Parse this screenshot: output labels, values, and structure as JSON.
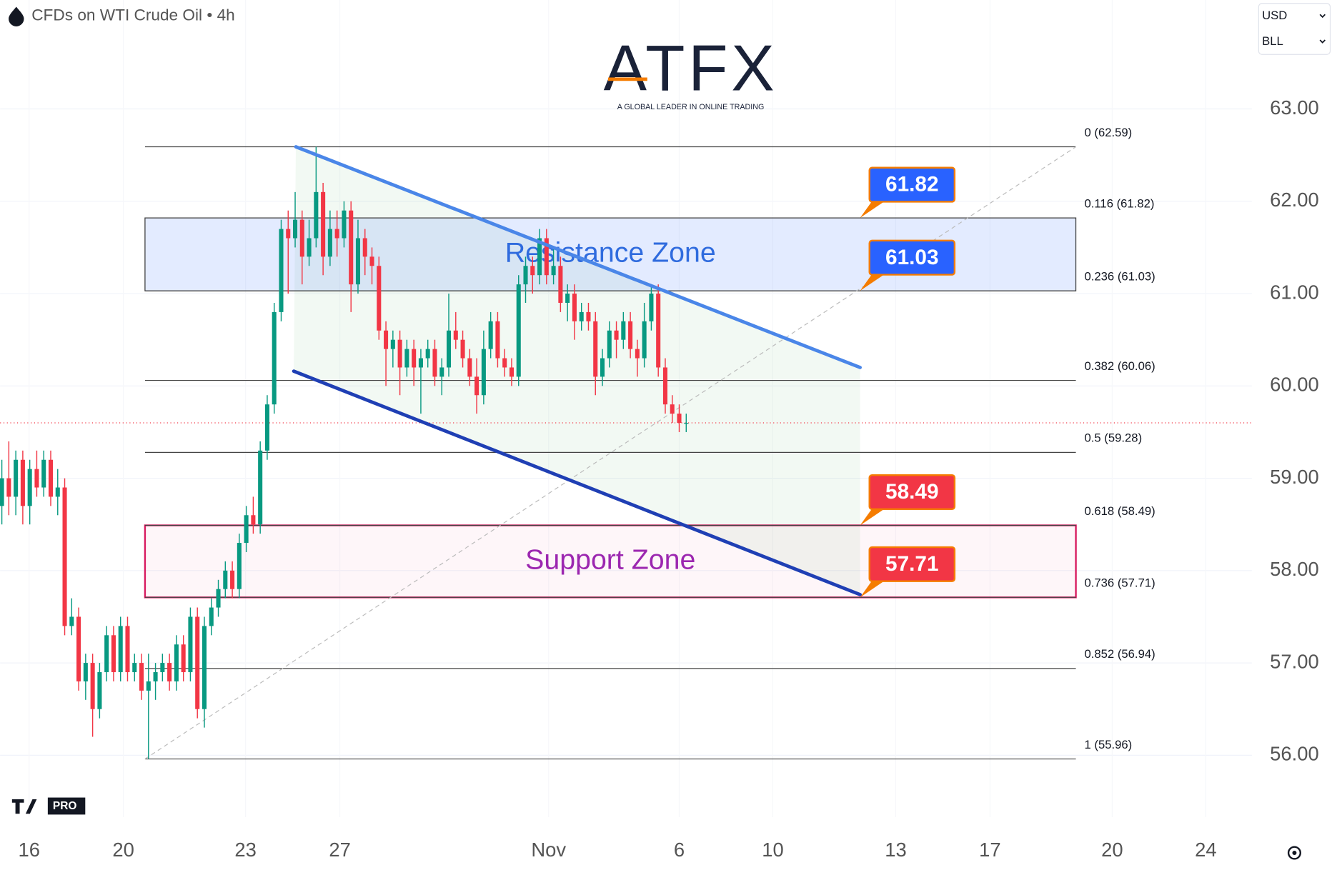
{
  "header": {
    "title": "CFDs on WTI Crude Oil • 4h",
    "currency": "USD",
    "unit": "BLL"
  },
  "logo": {
    "name": "ATFX",
    "tagline": "A GLOBAL LEADER IN ONLINE TRADING"
  },
  "badge": "PRO",
  "chart_data": {
    "type": "candlestick",
    "up_color": "#089981",
    "down_color": "#f23645",
    "candles": [
      [
        58.7,
        59.2,
        58.5,
        59.0
      ],
      [
        59.0,
        59.4,
        58.6,
        58.8
      ],
      [
        58.8,
        59.3,
        58.6,
        59.2
      ],
      [
        59.2,
        59.3,
        58.5,
        58.7
      ],
      [
        58.7,
        59.2,
        58.5,
        59.1
      ],
      [
        59.1,
        59.3,
        58.8,
        58.9
      ],
      [
        58.9,
        59.3,
        58.8,
        59.2
      ],
      [
        59.2,
        59.3,
        58.7,
        58.8
      ],
      [
        58.8,
        59.1,
        58.6,
        58.9
      ],
      [
        58.9,
        59.0,
        57.3,
        57.4
      ],
      [
        57.4,
        57.7,
        57.3,
        57.5
      ],
      [
        57.5,
        57.6,
        56.7,
        56.8
      ],
      [
        56.8,
        57.1,
        56.6,
        57.0
      ],
      [
        57.0,
        57.1,
        56.2,
        56.5
      ],
      [
        56.5,
        57.0,
        56.4,
        56.9
      ],
      [
        56.9,
        57.4,
        56.8,
        57.3
      ],
      [
        57.3,
        57.4,
        56.8,
        56.9
      ],
      [
        56.9,
        57.5,
        56.8,
        57.4
      ],
      [
        57.4,
        57.5,
        56.8,
        56.9
      ],
      [
        56.9,
        57.1,
        56.8,
        57.0
      ],
      [
        57.0,
        57.1,
        56.6,
        56.7
      ],
      [
        56.7,
        57.1,
        55.96,
        56.8
      ],
      [
        56.8,
        57.0,
        56.6,
        56.9
      ],
      [
        56.9,
        57.1,
        56.8,
        57.0
      ],
      [
        57.0,
        57.1,
        56.7,
        56.8
      ],
      [
        56.8,
        57.3,
        56.7,
        57.2
      ],
      [
        57.2,
        57.3,
        56.8,
        56.9
      ],
      [
        56.9,
        57.6,
        56.8,
        57.5
      ],
      [
        57.5,
        57.6,
        56.4,
        56.5
      ],
      [
        56.5,
        57.5,
        56.3,
        57.4
      ],
      [
        57.4,
        57.7,
        57.3,
        57.6
      ],
      [
        57.6,
        57.9,
        57.5,
        57.8
      ],
      [
        57.8,
        58.1,
        57.7,
        58.0
      ],
      [
        58.0,
        58.1,
        57.7,
        57.8
      ],
      [
        57.8,
        58.4,
        57.7,
        58.3
      ],
      [
        58.3,
        58.7,
        58.2,
        58.6
      ],
      [
        58.6,
        58.8,
        58.4,
        58.5
      ],
      [
        58.5,
        59.4,
        58.4,
        59.3
      ],
      [
        59.3,
        59.9,
        59.2,
        59.8
      ],
      [
        59.8,
        60.9,
        59.7,
        60.8
      ],
      [
        60.8,
        61.8,
        60.7,
        61.7
      ],
      [
        61.7,
        61.9,
        61.0,
        61.6
      ],
      [
        61.6,
        62.1,
        61.5,
        61.8
      ],
      [
        61.8,
        61.9,
        61.1,
        61.4
      ],
      [
        61.4,
        61.8,
        61.3,
        61.6
      ],
      [
        61.6,
        62.59,
        61.5,
        62.1
      ],
      [
        62.1,
        62.2,
        61.2,
        61.4
      ],
      [
        61.4,
        61.9,
        61.3,
        61.7
      ],
      [
        61.7,
        61.9,
        61.4,
        61.6
      ],
      [
        61.6,
        62.0,
        61.5,
        61.9
      ],
      [
        61.9,
        62.0,
        60.8,
        61.1
      ],
      [
        61.1,
        61.8,
        61.0,
        61.6
      ],
      [
        61.6,
        61.7,
        61.2,
        61.4
      ],
      [
        61.4,
        61.5,
        61.1,
        61.3
      ],
      [
        61.3,
        61.4,
        60.5,
        60.6
      ],
      [
        60.6,
        60.7,
        60.0,
        60.4
      ],
      [
        60.4,
        60.6,
        60.2,
        60.5
      ],
      [
        60.5,
        60.6,
        59.9,
        60.2
      ],
      [
        60.2,
        60.5,
        60.1,
        60.4
      ],
      [
        60.4,
        60.5,
        60.0,
        60.2
      ],
      [
        60.2,
        60.4,
        59.7,
        60.3
      ],
      [
        60.3,
        60.5,
        60.2,
        60.4
      ],
      [
        60.4,
        60.5,
        60.0,
        60.1
      ],
      [
        60.1,
        60.3,
        59.9,
        60.2
      ],
      [
        60.2,
        61.0,
        60.1,
        60.6
      ],
      [
        60.6,
        60.8,
        60.4,
        60.5
      ],
      [
        60.5,
        60.6,
        60.2,
        60.3
      ],
      [
        60.3,
        60.4,
        60.0,
        60.1
      ],
      [
        60.1,
        60.3,
        59.7,
        59.9
      ],
      [
        59.9,
        60.6,
        59.8,
        60.4
      ],
      [
        60.4,
        60.8,
        60.3,
        60.7
      ],
      [
        60.7,
        60.8,
        60.2,
        60.3
      ],
      [
        60.3,
        60.4,
        60.1,
        60.2
      ],
      [
        60.2,
        60.3,
        60.0,
        60.1
      ],
      [
        60.1,
        61.2,
        60.0,
        61.1
      ],
      [
        61.1,
        61.4,
        60.9,
        61.3
      ],
      [
        61.3,
        61.4,
        61.0,
        61.2
      ],
      [
        61.2,
        61.7,
        61.1,
        61.6
      ],
      [
        61.6,
        61.7,
        61.1,
        61.2
      ],
      [
        61.2,
        61.5,
        61.1,
        61.3
      ],
      [
        61.3,
        61.4,
        60.8,
        60.9
      ],
      [
        60.9,
        61.1,
        60.7,
        61.0
      ],
      [
        61.0,
        61.1,
        60.5,
        60.7
      ],
      [
        60.7,
        60.9,
        60.6,
        60.8
      ],
      [
        60.8,
        60.9,
        60.6,
        60.7
      ],
      [
        60.7,
        60.8,
        59.9,
        60.1
      ],
      [
        60.1,
        60.4,
        60.0,
        60.3
      ],
      [
        60.3,
        60.7,
        60.2,
        60.6
      ],
      [
        60.6,
        60.7,
        60.3,
        60.5
      ],
      [
        60.5,
        60.8,
        60.4,
        60.7
      ],
      [
        60.7,
        60.8,
        60.3,
        60.4
      ],
      [
        60.4,
        60.5,
        60.1,
        60.3
      ],
      [
        60.3,
        60.9,
        60.2,
        60.7
      ],
      [
        60.7,
        61.1,
        60.6,
        61.0
      ],
      [
        61.0,
        61.1,
        60.1,
        60.2
      ],
      [
        60.2,
        60.3,
        59.7,
        59.8
      ],
      [
        59.8,
        59.9,
        59.6,
        59.7
      ],
      [
        59.7,
        59.8,
        59.5,
        59.6
      ],
      [
        59.6,
        59.7,
        59.5,
        59.6
      ]
    ],
    "xlim": [
      -0.25,
      179
    ],
    "xticks": [
      {
        "value": 3.9,
        "label": "16"
      },
      {
        "value": 17.4,
        "label": "20"
      },
      {
        "value": 34.9,
        "label": "23"
      },
      {
        "value": 48.4,
        "label": "27"
      },
      {
        "value": 78.3,
        "label": "Nov"
      },
      {
        "value": 97,
        "label": "6"
      },
      {
        "value": 110.4,
        "label": "10"
      },
      {
        "value": 128,
        "label": "13"
      },
      {
        "value": 141.5,
        "label": "17"
      },
      {
        "value": 159,
        "label": "20"
      },
      {
        "value": 172.4,
        "label": "24"
      }
    ],
    "ylim": [
      55.33,
      64.18
    ],
    "yticks": [
      {
        "value": 56,
        "label": "56.00"
      },
      {
        "value": 57,
        "label": "57.00"
      },
      {
        "value": 58,
        "label": "58.00"
      },
      {
        "value": 59,
        "label": "59.00"
      },
      {
        "value": 60,
        "label": "60.00"
      },
      {
        "value": 61,
        "label": "61.00"
      },
      {
        "value": 62,
        "label": "62.00"
      },
      {
        "value": 63,
        "label": "63.00"
      }
    ],
    "grid": true,
    "last_price": 59.6,
    "fibonacci": {
      "x": [
        20.5,
        153.8
      ],
      "levels": [
        {
          "value": 62.59,
          "label": "0 (62.59)"
        },
        {
          "value": 61.82,
          "label": "0.116 (61.82)"
        },
        {
          "value": 61.03,
          "label": "0.236 (61.03)"
        },
        {
          "value": 60.06,
          "label": "0.382 (60.06)"
        },
        {
          "value": 59.28,
          "label": "0.5 (59.28)"
        },
        {
          "value": 58.49,
          "label": "0.618 (58.49)"
        },
        {
          "value": 57.71,
          "label": "0.736 (57.71)"
        },
        {
          "value": 56.94,
          "label": "0.852 (56.94)"
        },
        {
          "value": 55.96,
          "label": "1 (55.96)"
        }
      ]
    },
    "zones": [
      {
        "label": "Resistance Zone",
        "range": [
          61.03,
          61.82
        ],
        "fill": "rgba(41,98,255,0.13)",
        "stroke": "#333333",
        "color": "#2f6bde"
      },
      {
        "label": "Support Zone",
        "range": [
          57.71,
          58.49
        ],
        "fill": "rgba(233,30,99,0.04)",
        "stroke": "#d81b60",
        "color": "#9c27b0"
      }
    ],
    "channel": [
      {
        "x": [
          42.1,
          122.9
        ],
        "y": [
          62.59,
          60.2
        ],
        "color": "#4a86e8"
      },
      {
        "x": [
          41.8,
          122.9
        ],
        "y": [
          60.16,
          57.74
        ],
        "color": "#1f3fb4"
      }
    ],
    "callouts": {
      "x": 122.9,
      "items": [
        {
          "value": 61.82,
          "color": "#2962ff"
        },
        {
          "value": 61.03,
          "color": "#2962ff"
        },
        {
          "value": 58.49,
          "color": "#f23645"
        },
        {
          "value": 57.71,
          "color": "#f23645"
        }
      ]
    }
  }
}
